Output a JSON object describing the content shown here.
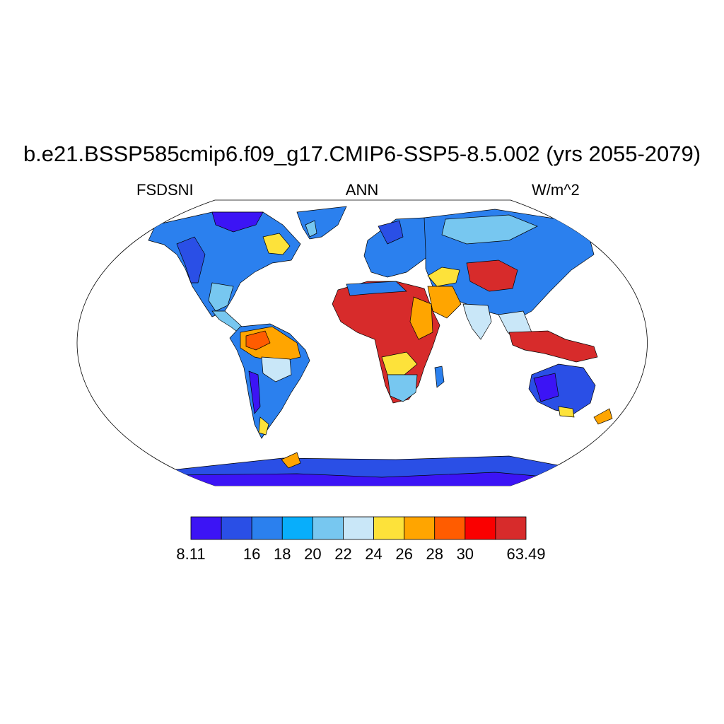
{
  "title": "b.e21.BSSP585cmip6.f09_g17.CMIP6-SSP5-8.5.002 (yrs 2055-2079)",
  "variable": "FSDSNI",
  "season": "ANN",
  "units": "W/m^2",
  "colorbar": {
    "colors": [
      "#3c14f5",
      "#2a4fe6",
      "#2b80ee",
      "#08aefb",
      "#77c7f0",
      "#c9e7f8",
      "#fde23a",
      "#ffa500",
      "#ff5c00",
      "#fa0000",
      "#d72b2b"
    ],
    "labels": [
      "8.11",
      "16",
      "18",
      "20",
      "22",
      "24",
      "26",
      "28",
      "30",
      "63.49"
    ]
  },
  "colors": {
    "ocean": "#ffffff",
    "coastline": "#000000"
  }
}
